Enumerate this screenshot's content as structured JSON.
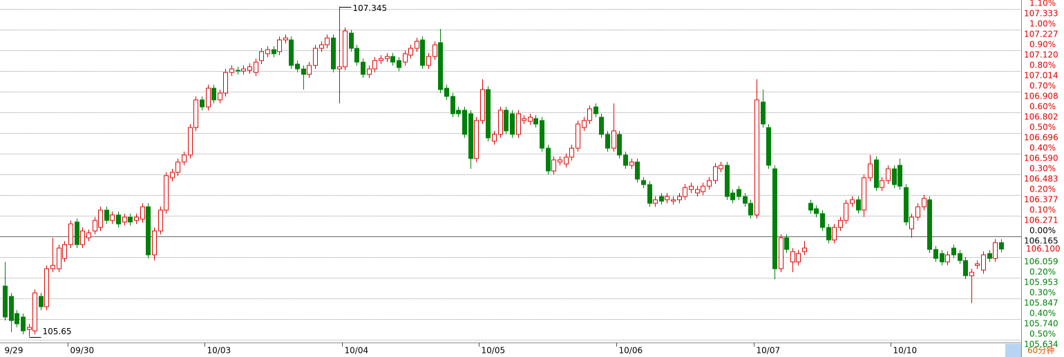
{
  "chart_data": {
    "type": "candlestick",
    "period": "60分钟",
    "up_color": "#e00000",
    "down_color": "#00800a",
    "grid": true,
    "ylim": [
      105.62,
      107.379
    ],
    "y2lim": [
      -0.513,
      1.143
    ],
    "yticks": [
      107.333,
      107.227,
      {
        "value": 107.12,
        "label": "107.120"
      },
      107.014,
      106.908,
      106.802,
      106.696,
      {
        "value": 106.59,
        "label": "106.590"
      },
      106.483,
      106.377,
      106.271,
      106.165,
      106.059,
      105.953,
      105.847,
      {
        "value": 105.74,
        "label": "105.740"
      },
      105.634
    ],
    "y2ticks": [
      {
        "value": 1.1,
        "label": "1.10%"
      },
      {
        "value": 1.0,
        "label": "1.00%"
      },
      {
        "value": 0.9,
        "label": "0.90%"
      },
      {
        "value": 0.8,
        "label": "0.80%"
      },
      {
        "value": 0.7,
        "label": "0.70%"
      },
      {
        "value": 0.6,
        "label": "0.60%"
      },
      {
        "value": 0.5,
        "label": "0.50%"
      },
      {
        "value": 0.4,
        "label": "0.40%"
      },
      {
        "value": 0.3,
        "label": "0.30%"
      },
      {
        "value": 0.2,
        "label": "0.20%"
      },
      {
        "value": 0.1,
        "label": "0.10%"
      },
      {
        "value": 0,
        "label": "0.00%"
      },
      {
        "value": -0.2,
        "label": "0.20%"
      },
      {
        "value": -0.3,
        "label": "0.30%"
      },
      {
        "value": -0.4,
        "label": "0.40%"
      },
      {
        "value": -0.5,
        "label": "0.50%"
      }
    ],
    "last_price": {
      "value": 106.1,
      "label": "106.100"
    },
    "categories": [
      "9/29",
      null,
      null,
      null,
      null,
      null,
      null,
      null,
      null,
      null,
      null,
      "09/30",
      null,
      null,
      null,
      null,
      null,
      null,
      null,
      null,
      null,
      null,
      null,
      null,
      null,
      null,
      null,
      null,
      null,
      null,
      null,
      null,
      null,
      null,
      "10/03",
      null,
      null,
      null,
      null,
      null,
      null,
      null,
      null,
      null,
      null,
      null,
      null,
      null,
      null,
      null,
      null,
      null,
      null,
      null,
      null,
      null,
      null,
      "10/04",
      null,
      null,
      null,
      null,
      null,
      null,
      null,
      null,
      null,
      null,
      null,
      null,
      null,
      null,
      null,
      null,
      null,
      null,
      null,
      null,
      null,
      null,
      "10/05",
      null,
      null,
      null,
      null,
      null,
      null,
      null,
      null,
      null,
      null,
      null,
      null,
      null,
      null,
      null,
      null,
      null,
      null,
      null,
      null,
      null,
      null,
      "10/06",
      null,
      null,
      null,
      null,
      null,
      null,
      null,
      null,
      null,
      null,
      null,
      null,
      null,
      null,
      null,
      null,
      null,
      null,
      null,
      null,
      null,
      null,
      "10/07",
      null,
      null,
      null,
      null,
      null,
      null,
      null,
      null,
      null,
      null,
      null,
      null,
      null,
      null,
      null,
      null,
      null,
      null,
      null,
      null,
      null,
      null,
      "10/10",
      null,
      null,
      null,
      null,
      null,
      null,
      null,
      null,
      null,
      null,
      null,
      null
    ],
    "ohlc": [
      [
        105.91,
        106.034,
        105.733,
        105.751
      ],
      [
        105.857,
        105.875,
        105.673,
        105.733
      ],
      [
        105.769,
        105.787,
        105.698,
        105.716
      ],
      [
        105.751,
        105.769,
        105.662,
        105.68
      ],
      [
        105.687,
        105.716,
        105.65,
        105.698
      ],
      [
        105.68,
        105.893,
        105.662,
        105.875
      ],
      [
        105.857,
        105.875,
        105.786,
        105.804
      ],
      [
        105.804,
        106.017,
        105.786,
        105.999
      ],
      [
        105.999,
        106.158,
        105.981,
        106.016
      ],
      [
        105.999,
        106.123,
        105.981,
        106.105
      ],
      [
        106.052,
        106.141,
        106.034,
        106.123
      ],
      [
        106.123,
        106.247,
        106.105,
        106.229
      ],
      [
        106.239,
        106.257,
        106.105,
        106.123
      ],
      [
        106.123,
        106.211,
        106.105,
        106.193
      ],
      [
        106.158,
        106.201,
        106.14,
        106.183
      ],
      [
        106.193,
        106.265,
        106.175,
        106.247
      ],
      [
        106.211,
        106.318,
        106.193,
        106.3
      ],
      [
        106.3,
        106.318,
        106.229,
        106.247
      ],
      [
        106.247,
        106.293,
        106.229,
        106.275
      ],
      [
        106.275,
        106.293,
        106.211,
        106.229
      ],
      [
        106.239,
        106.282,
        106.221,
        106.264
      ],
      [
        106.264,
        106.282,
        106.221,
        106.239
      ],
      [
        106.247,
        106.282,
        106.229,
        106.264
      ],
      [
        106.254,
        106.335,
        106.236,
        106.317
      ],
      [
        106.317,
        106.335,
        106.052,
        106.07
      ],
      [
        106.07,
        106.211,
        106.041,
        106.193
      ],
      [
        106.193,
        106.318,
        106.175,
        106.3
      ],
      [
        106.3,
        106.495,
        106.282,
        106.477
      ],
      [
        106.466,
        106.512,
        106.448,
        106.494
      ],
      [
        106.494,
        106.565,
        106.476,
        106.547
      ],
      [
        106.547,
        106.601,
        106.529,
        106.583
      ],
      [
        106.583,
        106.742,
        106.565,
        106.724
      ],
      [
        106.724,
        106.884,
        106.706,
        106.866
      ],
      [
        106.866,
        106.884,
        106.812,
        106.83
      ],
      [
        106.83,
        106.944,
        106.812,
        106.926
      ],
      [
        106.926,
        106.944,
        106.848,
        106.866
      ],
      [
        106.866,
        106.919,
        106.848,
        106.901
      ],
      [
        106.901,
        107.025,
        106.883,
        107.007
      ],
      [
        107.007,
        107.043,
        106.989,
        107.025
      ],
      [
        107.018,
        107.036,
        106.996,
        107.014
      ],
      [
        107.014,
        107.043,
        106.996,
        107.025
      ],
      [
        107.018,
        107.054,
        107.0,
        107.036
      ],
      [
        107.007,
        107.078,
        106.989,
        107.06
      ],
      [
        107.068,
        107.132,
        107.05,
        107.114
      ],
      [
        107.103,
        107.142,
        107.085,
        107.124
      ],
      [
        107.124,
        107.142,
        107.085,
        107.103
      ],
      [
        107.114,
        107.192,
        107.096,
        107.174
      ],
      [
        107.174,
        107.202,
        107.156,
        107.184
      ],
      [
        107.174,
        107.192,
        107.025,
        107.043
      ],
      [
        107.05,
        107.068,
        107.007,
        107.025
      ],
      [
        107.025,
        107.043,
        106.919,
        106.997
      ],
      [
        106.997,
        107.061,
        106.979,
        107.043
      ],
      [
        107.043,
        107.149,
        107.025,
        107.131
      ],
      [
        107.131,
        107.167,
        107.113,
        107.149
      ],
      [
        107.149,
        107.202,
        107.131,
        107.184
      ],
      [
        107.184,
        107.202,
        107.007,
        107.025
      ],
      [
        107.025,
        107.345,
        106.848,
        107.036
      ],
      [
        107.036,
        107.238,
        107.018,
        107.22
      ],
      [
        107.209,
        107.227,
        107.113,
        107.131
      ],
      [
        107.131,
        107.149,
        107.042,
        107.06
      ],
      [
        107.06,
        107.078,
        106.979,
        106.997
      ],
      [
        106.997,
        107.043,
        106.979,
        107.025
      ],
      [
        107.025,
        107.086,
        107.007,
        107.068
      ],
      [
        107.068,
        107.096,
        107.05,
        107.078
      ],
      [
        107.078,
        107.107,
        107.06,
        107.089
      ],
      [
        107.089,
        107.107,
        107.042,
        107.06
      ],
      [
        107.068,
        107.086,
        107.014,
        107.032
      ],
      [
        107.06,
        107.121,
        107.042,
        107.103
      ],
      [
        107.096,
        107.149,
        107.078,
        107.131
      ],
      [
        107.131,
        107.185,
        107.113,
        107.167
      ],
      [
        107.174,
        107.192,
        107.025,
        107.043
      ],
      [
        107.043,
        107.107,
        107.025,
        107.089
      ],
      [
        107.089,
        107.167,
        107.071,
        107.149
      ],
      [
        107.16,
        107.23,
        106.901,
        106.919
      ],
      [
        106.926,
        106.944,
        106.866,
        106.884
      ],
      [
        106.884,
        106.902,
        106.777,
        106.795
      ],
      [
        106.813,
        106.831,
        106.777,
        106.795
      ],
      [
        106.813,
        106.831,
        106.671,
        106.689
      ],
      [
        106.795,
        106.813,
        106.512,
        106.565
      ],
      [
        106.565,
        106.778,
        106.547,
        106.76
      ],
      [
        106.76,
        106.972,
        106.742,
        106.919
      ],
      [
        106.919,
        106.937,
        106.653,
        106.671
      ],
      [
        106.654,
        106.707,
        106.636,
        106.689
      ],
      [
        106.689,
        106.831,
        106.671,
        106.813
      ],
      [
        106.813,
        106.831,
        106.689,
        106.707
      ],
      [
        106.795,
        106.813,
        106.671,
        106.689
      ],
      [
        106.689,
        106.813,
        106.671,
        106.795
      ],
      [
        106.76,
        106.788,
        106.742,
        106.77
      ],
      [
        106.756,
        106.795,
        106.738,
        106.777
      ],
      [
        106.77,
        106.788,
        106.724,
        106.742
      ],
      [
        106.76,
        106.778,
        106.6,
        106.618
      ],
      [
        106.618,
        106.636,
        106.483,
        106.501
      ],
      [
        106.501,
        106.576,
        106.483,
        106.558
      ],
      [
        106.547,
        106.576,
        106.529,
        106.558
      ],
      [
        106.537,
        106.59,
        106.519,
        106.572
      ],
      [
        106.572,
        106.636,
        106.554,
        106.618
      ],
      [
        106.618,
        106.76,
        106.6,
        106.742
      ],
      [
        106.724,
        106.778,
        106.706,
        106.76
      ],
      [
        106.76,
        106.838,
        106.742,
        106.82
      ],
      [
        106.83,
        106.848,
        106.777,
        106.795
      ],
      [
        106.777,
        106.795,
        106.671,
        106.689
      ],
      [
        106.689,
        106.707,
        106.6,
        106.618
      ],
      [
        106.618,
        106.848,
        106.6,
        106.707
      ],
      [
        106.689,
        106.707,
        106.565,
        106.583
      ],
      [
        106.583,
        106.601,
        106.512,
        106.53
      ],
      [
        106.53,
        106.565,
        106.512,
        106.547
      ],
      [
        106.547,
        106.565,
        106.441,
        106.459
      ],
      [
        106.452,
        106.47,
        106.413,
        106.431
      ],
      [
        106.431,
        106.449,
        106.317,
        106.335
      ],
      [
        106.335,
        106.371,
        106.317,
        106.353
      ],
      [
        106.37,
        106.388,
        106.328,
        106.346
      ],
      [
        106.353,
        106.388,
        106.335,
        106.37
      ],
      [
        106.346,
        106.371,
        106.328,
        106.353
      ],
      [
        106.353,
        106.388,
        106.335,
        106.37
      ],
      [
        106.37,
        106.434,
        106.352,
        106.416
      ],
      [
        106.406,
        106.441,
        106.388,
        106.423
      ],
      [
        106.388,
        106.424,
        106.37,
        106.406
      ],
      [
        106.395,
        106.441,
        106.377,
        106.423
      ],
      [
        106.423,
        106.47,
        106.405,
        106.452
      ],
      [
        106.452,
        106.541,
        106.434,
        106.523
      ],
      [
        106.512,
        106.548,
        106.494,
        106.53
      ],
      [
        106.53,
        106.548,
        106.352,
        106.37
      ],
      [
        106.388,
        106.406,
        106.335,
        106.353
      ],
      [
        106.406,
        106.424,
        106.352,
        106.37
      ],
      [
        106.37,
        106.388,
        106.317,
        106.335
      ],
      [
        106.335,
        106.353,
        106.257,
        106.275
      ],
      [
        106.275,
        106.972,
        106.257,
        106.866
      ],
      [
        106.855,
        106.919,
        106.724,
        106.742
      ],
      [
        106.724,
        106.742,
        106.512,
        106.53
      ],
      [
        106.512,
        106.53,
        105.946,
        105.999
      ],
      [
        105.999,
        106.176,
        105.981,
        106.158
      ],
      [
        106.158,
        106.176,
        106.08,
        106.098
      ],
      [
        106.034,
        106.105,
        105.981,
        106.087
      ],
      [
        106.034,
        106.095,
        106.016,
        106.077
      ],
      [
        106.087,
        106.141,
        106.069,
        106.105
      ],
      [
        106.335,
        106.353,
        106.282,
        106.3
      ],
      [
        106.307,
        106.325,
        106.264,
        106.282
      ],
      [
        106.282,
        106.3,
        106.193,
        106.211
      ],
      [
        106.211,
        106.229,
        106.129,
        106.147
      ],
      [
        106.147,
        106.229,
        106.129,
        106.211
      ],
      [
        106.211,
        106.265,
        106.193,
        106.247
      ],
      [
        106.247,
        106.353,
        106.229,
        106.335
      ],
      [
        106.335,
        106.371,
        106.317,
        106.353
      ],
      [
        106.353,
        106.371,
        106.282,
        106.3
      ],
      [
        106.3,
        106.484,
        106.264,
        106.466
      ],
      [
        106.466,
        106.583,
        106.448,
        106.537
      ],
      [
        106.558,
        106.576,
        106.398,
        106.416
      ],
      [
        106.416,
        106.47,
        106.398,
        106.452
      ],
      [
        106.452,
        106.53,
        106.434,
        106.512
      ],
      [
        106.512,
        106.53,
        106.413,
        106.431
      ],
      [
        106.53,
        106.565,
        106.405,
        106.423
      ],
      [
        106.416,
        106.434,
        106.221,
        106.239
      ],
      [
        106.204,
        106.282,
        106.158,
        106.264
      ],
      [
        106.264,
        106.335,
        106.246,
        106.317
      ],
      [
        106.317,
        106.378,
        106.299,
        106.36
      ],
      [
        106.353,
        106.371,
        106.08,
        106.098
      ],
      [
        106.098,
        106.116,
        106.034,
        106.052
      ],
      [
        106.077,
        106.095,
        106.016,
        106.034
      ],
      [
        106.034,
        106.088,
        106.016,
        106.07
      ],
      [
        106.105,
        106.123,
        106.052,
        106.07
      ],
      [
        106.077,
        106.095,
        106.023,
        106.041
      ],
      [
        106.041,
        106.059,
        105.946,
        105.963
      ],
      [
        105.963,
        105.999,
        105.822,
        105.981
      ],
      [
        106.016,
        106.042,
        105.998,
        106.024
      ],
      [
        105.992,
        106.088,
        105.974,
        106.07
      ],
      [
        106.077,
        106.095,
        106.034,
        106.052
      ],
      [
        106.052,
        106.151,
        106.034,
        106.133
      ],
      [
        106.133,
        106.151,
        106.082,
        106.1
      ]
    ]
  }
}
